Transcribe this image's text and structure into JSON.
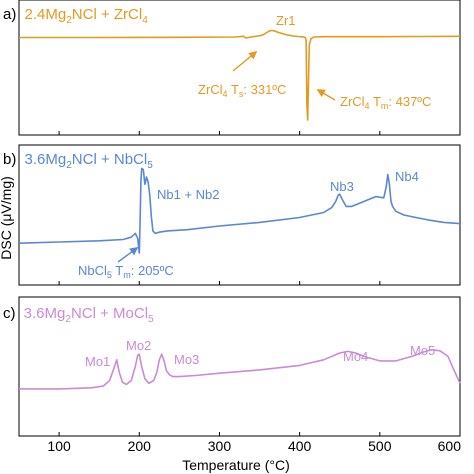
{
  "chart_data": {
    "type": "line",
    "xlabel": "Temperature (°C)",
    "ylabel": "DSC (μV/mg)",
    "xlim": [
      50,
      600
    ],
    "x_ticks": [
      100,
      200,
      300,
      400,
      500,
      600
    ],
    "x_tick_labels": [
      "100",
      "200",
      "300",
      "400",
      "500",
      "600"
    ],
    "grid": false,
    "panels": [
      {
        "label": "a)",
        "title_parts": {
          "pre": "2.4Mg",
          "sub1": "2",
          "mid": "NCl + ZrCl",
          "sub2": "4",
          "post": ""
        },
        "color": "#E39A1F",
        "series": [
          {
            "name": "2.4Mg2NCl + ZrCl4",
            "x": [
              50,
              150,
              250,
              320,
              330,
              333,
              336,
              340,
              344,
              348,
              352,
              355,
              358,
              361,
              364,
              368,
              372,
              378,
              385,
              392,
              398,
              402,
              405,
              407,
              408,
              409,
              410,
              411,
              412,
              414,
              418,
              430,
              450,
              500,
              550,
              600
            ],
            "y": [
              0.5,
              0.5,
              0.51,
              0.52,
              0.55,
              0.48,
              0.5,
              0.52,
              0.54,
              0.56,
              0.58,
              0.62,
              0.68,
              0.74,
              0.78,
              0.77,
              0.72,
              0.66,
              0.6,
              0.56,
              0.54,
              0.53,
              0.52,
              0.5,
              0.4,
              -2.2,
              -2.8,
              -1.2,
              0.2,
              0.45,
              0.52,
              0.53,
              0.53,
              0.53,
              0.54,
              0.55
            ]
          }
        ],
        "annotations": [
          {
            "text": "Zr1",
            "x": 360,
            "y": 1.45
          },
          {
            "text": "ZrCl4 Ts: 331ºC",
            "x": 305,
            "y": -1.3
          },
          {
            "text": "ZrCl4 Tm: 437ºC",
            "x": 484,
            "y": -2.05
          }
        ]
      },
      {
        "label": "b)",
        "title_parts": {
          "pre": "3.6Mg",
          "sub1": "2",
          "mid": "NCl + NbCl",
          "sub2": "5",
          "post": ""
        },
        "color": "#5A86D8",
        "series": [
          {
            "name": "3.6Mg2NCl + NbCl5",
            "x": [
              50,
              100,
              150,
              180,
              190,
              195,
              198,
              200,
              201,
              202,
              203,
              205,
              207,
              209,
              211,
              213,
              215,
              217,
              220,
              225,
              235,
              260,
              300,
              350,
              400,
              430,
              440,
              445,
              448,
              450,
              453,
              458,
              465,
              480,
              495,
              505,
              508,
              510,
              512,
              514,
              516,
              520,
              530,
              545,
              560,
              580,
              600
            ],
            "y": [
              -0.1,
              -0.05,
              0.0,
              0.05,
              0.15,
              0.3,
              0.1,
              -0.5,
              0.8,
              2.4,
              2.95,
              2.9,
              2.3,
              2.6,
              2.4,
              1.9,
              1.0,
              0.4,
              0.3,
              0.35,
              0.4,
              0.45,
              0.6,
              0.75,
              0.95,
              1.15,
              1.35,
              1.6,
              1.85,
              1.9,
              1.7,
              1.4,
              1.4,
              1.6,
              1.8,
              1.75,
              2.2,
              2.7,
              2.3,
              1.6,
              1.4,
              1.2,
              1.05,
              0.95,
              0.85,
              0.75,
              0.7
            ]
          }
        ],
        "annotations": [
          {
            "text": "Nb1 + Nb2",
            "x": 248,
            "y": 2.4
          },
          {
            "text": "Nb3",
            "x": 440,
            "y": 2.6
          },
          {
            "text": "Nb4",
            "x": 536,
            "y": 3.15
          },
          {
            "text": "NbCl5 Tm: 205ºC",
            "x": 140,
            "y": -1.15
          }
        ]
      },
      {
        "label": "c)",
        "title_parts": {
          "pre": "3.6Mg",
          "sub1": "2",
          "mid": "NCl + MoCl",
          "sub2": "5",
          "post": ""
        },
        "color": "#C98BD6",
        "series": [
          {
            "name": "3.6Mg2NCl + MoCl5",
            "x": [
              50,
              100,
              140,
              155,
              163,
              168,
              172,
              175,
              179,
              184,
              190,
              195,
              198,
              200,
              203,
              207,
              212,
              218,
              222,
              225,
              228,
              231,
              234,
              238,
              242,
              250,
              270,
              300,
              350,
              400,
              430,
              450,
              460,
              470,
              480,
              500,
              520,
              540,
              555,
              565,
              575,
              585,
              592,
              600
            ],
            "y": [
              0.0,
              0.0,
              0.02,
              0.05,
              0.15,
              0.35,
              0.52,
              0.3,
              0.12,
              0.08,
              0.15,
              0.4,
              0.6,
              0.62,
              0.4,
              0.18,
              0.1,
              0.15,
              0.3,
              0.52,
              0.62,
              0.5,
              0.32,
              0.25,
              0.22,
              0.22,
              0.24,
              0.28,
              0.34,
              0.42,
              0.52,
              0.64,
              0.67,
              0.64,
              0.58,
              0.5,
              0.5,
              0.58,
              0.66,
              0.7,
              0.68,
              0.58,
              0.35,
              0.1
            ]
          }
        ],
        "annotations": [
          {
            "text": "Mo1",
            "x": 150,
            "y": 0.85
          },
          {
            "text": "Mo2",
            "x": 195,
            "y": 1.15
          },
          {
            "text": "Mo3",
            "x": 245,
            "y": 0.9
          },
          {
            "text": "Mo4",
            "x": 460,
            "y": 0.95
          },
          {
            "text": "Mo5",
            "x": 570,
            "y": 1.05
          }
        ]
      }
    ]
  }
}
